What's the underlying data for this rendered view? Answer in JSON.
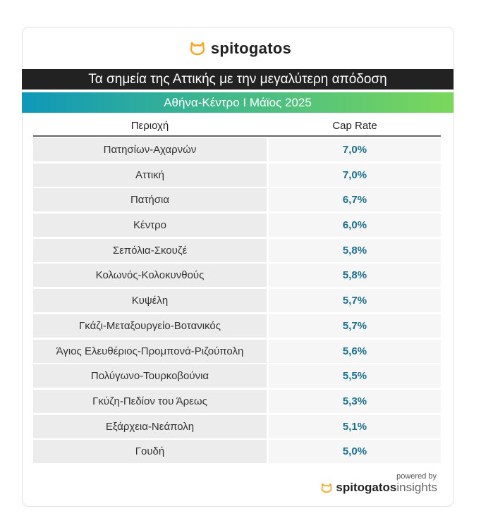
{
  "brand": {
    "name": "spitogatos",
    "accent": "#f5a623"
  },
  "title": "Τα σημεία της Αττικής με την μεγαλύτερη απόδοση",
  "subtitle": "Αθήνα-Κέντρο I Μάϊος 2025",
  "table": {
    "headers": [
      "Περιοχή",
      "Cap Rate"
    ],
    "rows": [
      {
        "area": "Πατησίων-Αχαρνών",
        "rate": "7,0%"
      },
      {
        "area": "Αττική",
        "rate": "7,0%"
      },
      {
        "area": "Πατήσια",
        "rate": "6,7%"
      },
      {
        "area": "Κέντρο",
        "rate": "6,0%"
      },
      {
        "area": "Σεπόλια-Σκουζέ",
        "rate": "5,8%"
      },
      {
        "area": "Κολωνός-Κολοκυνθούς",
        "rate": "5,8%"
      },
      {
        "area": "Κυψέλη",
        "rate": "5,7%"
      },
      {
        "area": "Γκάζι-Μεταξουργείο-Βοτανικός",
        "rate": "5,7%"
      },
      {
        "area": "Άγιος Ελευθέριος-Προμπονά-Ριζούπολη",
        "rate": "5,6%"
      },
      {
        "area": "Πολύγωνο-Τουρκοβούνια",
        "rate": "5,5%"
      },
      {
        "area": "Γκύζη-Πεδίον του Άρεως",
        "rate": "5,3%"
      },
      {
        "area": "Εξάρχεια-Νεάπολη",
        "rate": "5,1%"
      },
      {
        "area": "Γουδή",
        "rate": "5,0%"
      }
    ]
  },
  "footer": {
    "powered_by": "powered by",
    "brand": "spitogatos",
    "suffix": "insights"
  }
}
